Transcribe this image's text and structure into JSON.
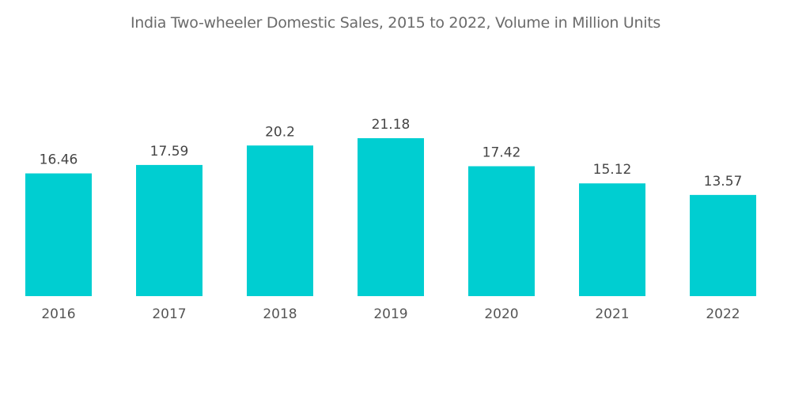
{
  "chart_data": {
    "type": "bar",
    "title": "India Two-wheeler Domestic Sales, 2015 to 2022, Volume in Million Units",
    "categories": [
      "2016",
      "2017",
      "2018",
      "2019",
      "2020",
      "2021",
      "2022"
    ],
    "values": [
      16.46,
      17.59,
      20.2,
      21.18,
      17.42,
      15.12,
      13.57
    ],
    "value_labels": [
      "16.46",
      "17.59",
      "20.2",
      "21.18",
      "17.42",
      "15.12",
      "13.57"
    ],
    "xlabel": "",
    "ylabel": "",
    "ylim": [
      0,
      21.18
    ],
    "grid": false,
    "legend": "none",
    "colors": {
      "bar": "#00CED1"
    }
  }
}
